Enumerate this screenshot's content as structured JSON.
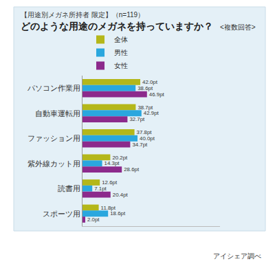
{
  "chart_data": {
    "type": "bar",
    "orientation": "horizontal",
    "subtitle": "【用途別メガネ所持者 限定】（n=119）",
    "title": "どのような用途のメガネを持っていますか？",
    "annotations": [
      "<複数回答>",
      "アイシェア調べ"
    ],
    "categories": [
      "パソコン作業用",
      "自動車運転用",
      "ファッション用",
      "紫外線カット用",
      "読書用",
      "スポーツ用"
    ],
    "series": [
      {
        "name": "全体",
        "color": "#b4b71a",
        "values": [
          42.0,
          38.7,
          37.8,
          20.2,
          12.6,
          11.8
        ],
        "value_labels": [
          "42.0pt",
          "38.7pt",
          "37.8pt",
          "20.2pt",
          "12.6pt",
          "11.8pt"
        ]
      },
      {
        "name": "男性",
        "color": "#2aa7de",
        "values": [
          38.6,
          42.9,
          40.0,
          14.3,
          7.1,
          18.6
        ],
        "value_labels": [
          "38.6pt",
          "42.9pt",
          "40.0pt",
          "14.3pt",
          "7.1pt",
          "18.6pt"
        ]
      },
      {
        "name": "女性",
        "color": "#8c2a8c",
        "values": [
          46.9,
          32.7,
          34.7,
          28.6,
          20.4,
          2.0
        ],
        "value_labels": [
          "46.9pt",
          "32.7pt",
          "34.7pt",
          "28.6pt",
          "20.4pt",
          "2.0pt"
        ]
      }
    ],
    "xlim": [
      0,
      100
    ],
    "grid": false,
    "legend": "top-left",
    "data_labels": true,
    "tick_labels": "y"
  }
}
